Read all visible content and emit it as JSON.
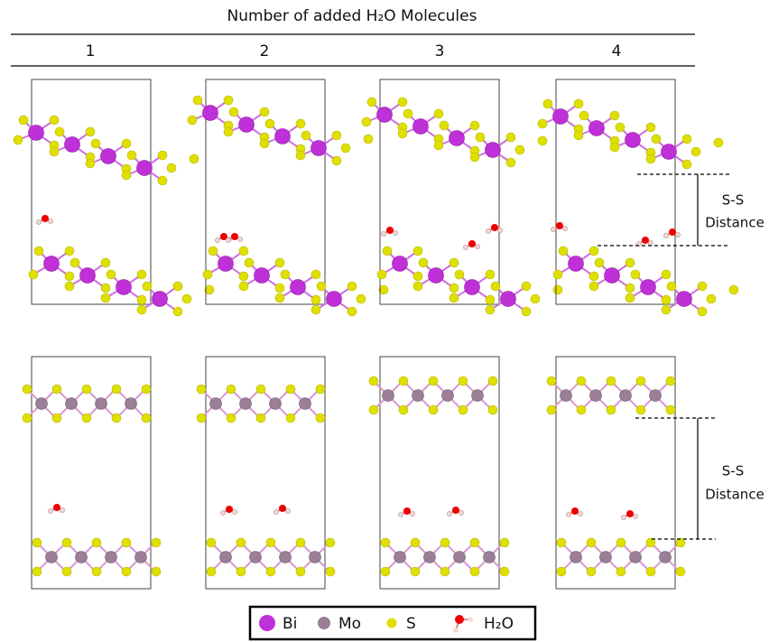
{
  "title": "Number of added H₂O Molecules",
  "columns": [
    "1",
    "2",
    "3",
    "4"
  ],
  "annotations": {
    "top": [
      "S-S",
      "Distance"
    ],
    "bottom": [
      "S-S",
      "Distance"
    ]
  },
  "legend": [
    "Bi",
    "Mo",
    "S",
    "H₂O"
  ]
}
